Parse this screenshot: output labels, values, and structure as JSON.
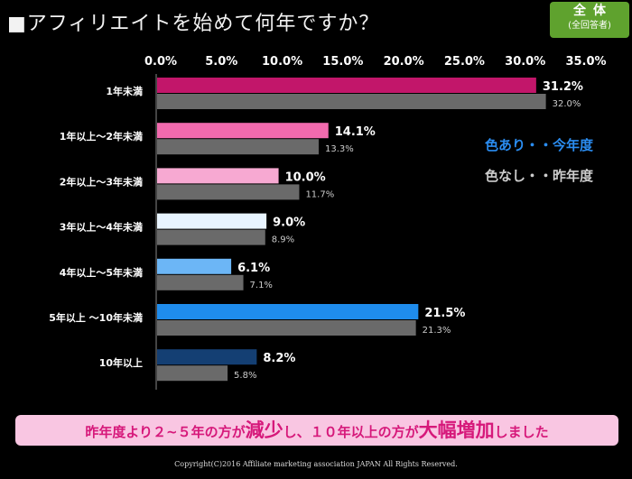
{
  "title": "■アフィリエイトを始めて何年ですか？",
  "badge": {
    "line1": "全体",
    "line2": "(全回答者)"
  },
  "legend": {
    "current": "色あり・・今年度",
    "previous": "色なし・・昨年度"
  },
  "note": {
    "p1": "昨年度より２~５年の方が",
    "b1": "減少",
    "p2": "し、１０年以上の方が",
    "b2": "大幅増加",
    "p3": "しました"
  },
  "copyright": "Copyright(C)2016  Affiliate marketing  association JAPAN  All Rights Reserved.",
  "chart_data": {
    "type": "bar",
    "orientation": "horizontal",
    "title": "アフィリエイトを始めて何年ですか？",
    "xlim": [
      0,
      35
    ],
    "ticks": [
      "0.0%",
      "5.0%",
      "10.0%",
      "15.0%",
      "20.0%",
      "25.0%",
      "30.0%",
      "35.0%"
    ],
    "categories": [
      "1年未満",
      "1年以上～2年未満",
      "2年以上～3年未満",
      "3年以上～4年未満",
      "4年以上～5年未満",
      "5年以上 ～10年未満",
      "10年以上"
    ],
    "series": [
      {
        "name": "今年度",
        "values": [
          31.2,
          14.1,
          10.0,
          9.0,
          6.1,
          21.5,
          8.2
        ],
        "labels": [
          "31.2%",
          "14.1%",
          "10.0%",
          "9.0%",
          "6.1%",
          "21.5%",
          "8.2%"
        ],
        "colors": [
          "#c2166a",
          "#f26aae",
          "#f7a9d2",
          "#e8f4ff",
          "#6cb6f6",
          "#1f8cec",
          "#143f73"
        ]
      },
      {
        "name": "昨年度",
        "values": [
          32.0,
          13.3,
          11.7,
          8.9,
          7.1,
          21.3,
          5.8
        ],
        "labels": [
          "32.0%",
          "13.3%",
          "11.7%",
          "8.9%",
          "7.1%",
          "21.3%",
          "5.8%"
        ],
        "color": "#6a6a6a"
      }
    ]
  }
}
